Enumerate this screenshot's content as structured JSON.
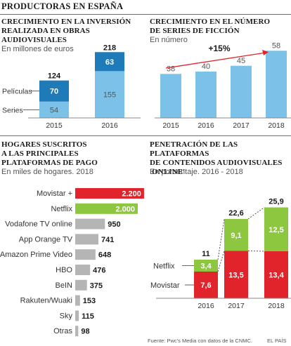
{
  "header": {
    "title": "PRODUCTORAS EN ESPAÑA"
  },
  "panels": {
    "p1": {
      "title": "CRECIMIENTO EN LA INVERSIÓN\nREALIZADA EN OBRAS\nAUDIOVISUALES",
      "subtitle": "En millones de euros"
    },
    "p2": {
      "title": "CRECIMIENTO EN EL NÚMERO\nDE SERIES DE FICCIÓN",
      "subtitle": "En número"
    },
    "p3": {
      "title": "HOGARES SUSCRITOS\nA LAS PRINCIPALES\nPLATAFORMAS DE PAGO",
      "subtitle": "En miles de hogares. 2018"
    },
    "p4": {
      "title": "PENETRACIÓN DE LAS PLATAFORMAS\nDE CONTENIDOS AUDIOVISUALES\n'ONLINE'",
      "subtitle": "En porcentaje. 2016 - 2018"
    }
  },
  "footer": {
    "source": "Fuente: Pwc's Media con datos de la CNMC.",
    "brand": "EL PAÍS"
  },
  "colors": {
    "dark_blue": "#1f7ab8",
    "light_blue": "#7cc1e8",
    "red": "#e1232b",
    "green": "#8dc63f",
    "gray": "#b5b5b5",
    "arrow_red": "#e1232b",
    "dashed": "#444444"
  },
  "chart_data": [
    {
      "type": "bar",
      "stacked": true,
      "categories": [
        "2015",
        "2016"
      ],
      "series": [
        {
          "name": "Series",
          "values": [
            54,
            155
          ]
        },
        {
          "name": "Películas",
          "values": [
            70,
            63
          ]
        }
      ],
      "totals": [
        "124",
        "218"
      ],
      "value_labels": {
        "Series": [
          "54",
          "155"
        ],
        "Películas": [
          "70",
          "63"
        ]
      }
    },
    {
      "type": "bar",
      "categories": [
        "2015",
        "2016",
        "2017",
        "2018"
      ],
      "values": [
        38,
        40,
        45,
        58
      ],
      "value_labels": [
        "38",
        "40",
        "45",
        "58"
      ],
      "annotation": "+15%"
    },
    {
      "type": "bar",
      "orientation": "horizontal",
      "categories": [
        "Movistar +",
        "Netflix",
        "Vodafone TV online",
        "App Orange TV",
        "Amazon Prime Video",
        "HBO",
        "BeIN",
        "Rakuten/Wuaki",
        "Sky",
        "Otras"
      ],
      "values": [
        2200,
        2000,
        950,
        741,
        648,
        476,
        375,
        153,
        115,
        98
      ],
      "value_labels": [
        "2.200",
        "2.000",
        "950",
        "741",
        "648",
        "476",
        "375",
        "153",
        "115",
        "98"
      ]
    },
    {
      "type": "bar",
      "stacked": true,
      "categories": [
        "2016",
        "2017",
        "2018"
      ],
      "series": [
        {
          "name": "Movistar",
          "values": [
            7.6,
            13.5,
            13.4
          ]
        },
        {
          "name": "Netflix",
          "values": [
            3.4,
            9.1,
            12.5
          ]
        }
      ],
      "totals": [
        "11",
        "22,6",
        "25,9"
      ],
      "value_labels": {
        "Movistar": [
          "7,6",
          "13,5",
          "13,4"
        ],
        "Netflix": [
          "3,4",
          "9,1",
          "12,5"
        ]
      }
    }
  ]
}
